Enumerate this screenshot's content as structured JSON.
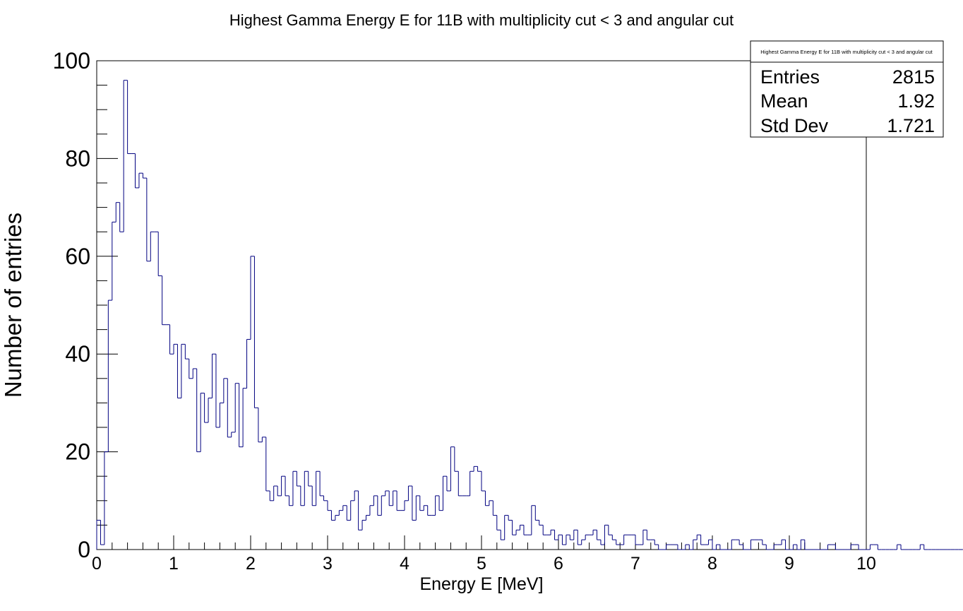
{
  "chart_data": {
    "type": "histogram",
    "title": "Highest Gamma Energy E for 11B with multiplicity cut < 3 and angular cut",
    "xlabel": "Energy E [MeV]",
    "ylabel": "Number of entries",
    "xlim": [
      0,
      10
    ],
    "ylim": [
      0,
      100
    ],
    "x_ticks": [
      "0",
      "1",
      "2",
      "3",
      "4",
      "5",
      "6",
      "7",
      "8",
      "9",
      "10"
    ],
    "y_ticks": [
      "0",
      "20",
      "40",
      "60",
      "80",
      "100"
    ],
    "bin_width": 0.05,
    "color": "#000080",
    "counts": [
      6,
      1,
      20,
      51,
      67,
      71,
      65,
      96,
      81,
      81,
      74,
      77,
      76,
      59,
      65,
      65,
      56,
      46,
      46,
      40,
      42,
      31,
      42,
      39,
      35,
      37,
      20,
      32,
      26,
      31,
      40,
      25,
      30,
      35,
      23,
      24,
      34,
      21,
      33,
      43,
      60,
      29,
      22,
      23,
      12,
      10,
      13,
      11,
      15,
      11,
      9,
      16,
      13,
      9,
      16,
      13,
      9,
      16,
      11,
      10,
      8,
      6,
      7,
      8,
      9,
      6,
      10,
      12,
      4,
      6,
      7,
      9,
      11,
      7,
      11,
      12,
      9,
      12,
      8,
      8,
      10,
      13,
      6,
      11,
      8,
      9,
      7,
      7,
      11,
      8,
      15,
      12,
      21,
      16,
      11,
      11,
      11,
      16,
      17,
      16,
      12,
      9,
      10,
      7,
      4,
      2,
      7,
      6,
      3,
      4,
      5,
      3,
      3,
      9,
      6,
      5,
      3,
      3,
      4,
      2,
      3,
      1,
      3,
      2,
      4,
      1,
      2,
      3,
      3,
      4,
      2,
      1,
      5,
      3,
      2,
      1,
      1,
      3,
      3,
      3,
      1,
      1,
      4,
      2,
      2,
      1,
      0,
      0,
      1,
      1,
      1,
      0,
      0,
      1,
      0,
      2,
      3,
      1,
      1,
      2,
      0,
      1,
      0,
      0,
      0,
      2,
      2,
      1,
      0,
      0,
      2,
      2,
      2,
      1,
      0,
      0,
      1,
      1,
      2,
      0,
      0,
      1,
      0,
      2,
      0,
      0,
      0,
      0,
      0,
      0,
      1,
      1,
      0,
      0,
      0,
      0,
      1,
      1,
      0,
      0,
      0,
      1,
      1,
      0,
      0,
      0,
      0,
      0,
      1,
      0,
      0,
      0,
      0,
      0,
      1,
      0,
      0,
      0,
      0,
      0,
      0,
      0,
      0,
      0,
      0,
      0,
      0,
      0,
      0,
      0,
      0,
      0,
      0,
      0,
      0,
      0,
      0,
      0,
      0,
      0,
      0,
      1,
      0,
      0,
      0,
      0,
      0,
      0,
      0,
      0,
      0,
      0,
      0,
      0,
      0,
      0,
      0,
      0,
      0,
      0,
      0
    ]
  },
  "stats_box": {
    "title": "Highest Gamma Energy E for 11B with multiplicity cut < 3 and angular cut",
    "rows": [
      {
        "label": "Entries",
        "value": "2815"
      },
      {
        "label": "Mean",
        "value": "1.92"
      },
      {
        "label": "Std Dev",
        "value": "1.721"
      }
    ]
  }
}
